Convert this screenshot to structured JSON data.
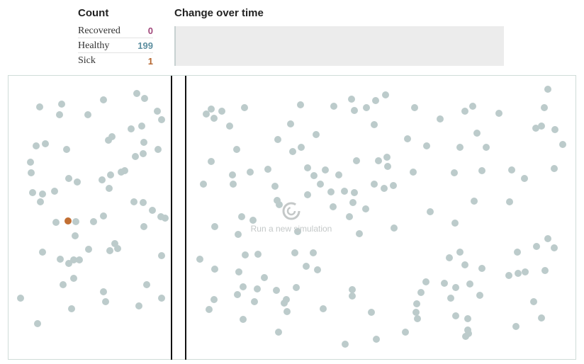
{
  "count": {
    "title": "Count",
    "rows": [
      {
        "label": "Recovered",
        "value": "0",
        "color": "#a0477a"
      },
      {
        "label": "Healthy",
        "value": "199",
        "color": "#5d8fa0"
      },
      {
        "label": "Sick",
        "value": "1",
        "color": "#b5652e"
      }
    ]
  },
  "change_chart": {
    "title": "Change over time"
  },
  "simulation": {
    "rerun_label": "Run a new simulation",
    "rerun_icon": "refresh-icon",
    "healthy_color": "#bccbcb",
    "sick_color": "#c26f33"
  }
}
